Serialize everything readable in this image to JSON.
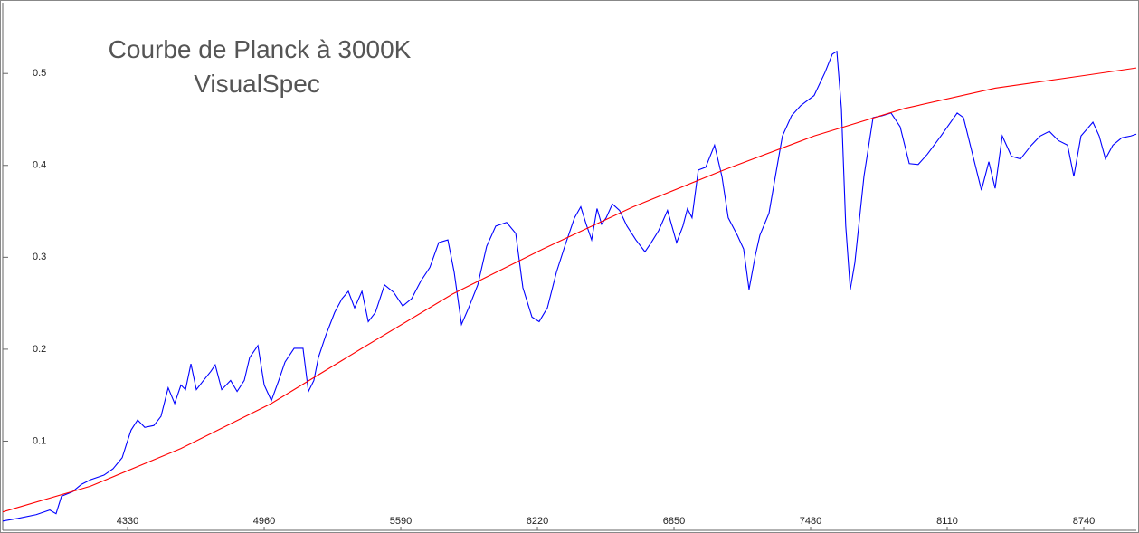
{
  "chart_data": {
    "type": "line",
    "title": "Courbe de Planck à 3000K",
    "subtitle": "VisualSpec",
    "xlim": [
      3754,
      8982
    ],
    "ylim": [
      0.003,
      0.577
    ],
    "xticks": [
      4330,
      4960,
      5590,
      6220,
      6850,
      7480,
      8110,
      8740
    ],
    "yticks": [
      0.1,
      0.2,
      0.3,
      0.4,
      0.5
    ],
    "grid": false,
    "series": [
      {
        "color": "#0000ff",
        "x": [
          3754,
          3825,
          3908,
          3971,
          4000,
          4025,
          4076,
          4117,
          4159,
          4221,
          4263,
          4305,
          4325,
          4346,
          4376,
          4409,
          4451,
          4484,
          4517,
          4547,
          4576,
          4597,
          4622,
          4647,
          4680,
          4714,
          4734,
          4764,
          4805,
          4835,
          4868,
          4893,
          4931,
          4960,
          4993,
          5027,
          5056,
          5098,
          5139,
          5164,
          5189,
          5210,
          5244,
          5285,
          5319,
          5348,
          5377,
          5411,
          5440,
          5473,
          5515,
          5557,
          5599,
          5640,
          5682,
          5724,
          5765,
          5807,
          5836,
          5870,
          5903,
          5945,
          5986,
          6028,
          6078,
          6120,
          6153,
          6195,
          6228,
          6266,
          6308,
          6349,
          6391,
          6420,
          6445,
          6470,
          6495,
          6516,
          6537,
          6566,
          6599,
          6633,
          6674,
          6716,
          6745,
          6779,
          6820,
          6862,
          6891,
          6912,
          6933,
          6962,
          6996,
          7037,
          7071,
          7100,
          7142,
          7171,
          7196,
          7225,
          7246,
          7288,
          7321,
          7350,
          7392,
          7434,
          7496,
          7546,
          7580,
          7601,
          7622,
          7642,
          7663,
          7684,
          7726,
          7768,
          7809,
          7851,
          7893,
          7935,
          7976,
          8018,
          8081,
          8156,
          8185,
          8227,
          8268,
          8302,
          8331,
          8364,
          8406,
          8448,
          8498,
          8539,
          8581,
          8623,
          8665,
          8694,
          8727,
          8782,
          8811,
          8840,
          8874,
          8915,
          8957,
          8982
        ],
        "values": [
          0.013,
          0.016,
          0.02,
          0.025,
          0.021,
          0.04,
          0.045,
          0.053,
          0.058,
          0.063,
          0.07,
          0.082,
          0.097,
          0.112,
          0.123,
          0.115,
          0.117,
          0.127,
          0.158,
          0.141,
          0.161,
          0.156,
          0.184,
          0.156,
          0.166,
          0.176,
          0.183,
          0.156,
          0.166,
          0.154,
          0.166,
          0.191,
          0.204,
          0.161,
          0.144,
          0.166,
          0.186,
          0.201,
          0.201,
          0.154,
          0.166,
          0.191,
          0.215,
          0.24,
          0.255,
          0.263,
          0.245,
          0.263,
          0.23,
          0.24,
          0.27,
          0.262,
          0.247,
          0.255,
          0.274,
          0.289,
          0.316,
          0.319,
          0.284,
          0.227,
          0.245,
          0.27,
          0.312,
          0.334,
          0.338,
          0.326,
          0.267,
          0.235,
          0.23,
          0.245,
          0.284,
          0.314,
          0.343,
          0.355,
          0.336,
          0.319,
          0.353,
          0.336,
          0.343,
          0.358,
          0.351,
          0.334,
          0.319,
          0.306,
          0.316,
          0.329,
          0.351,
          0.316,
          0.334,
          0.353,
          0.343,
          0.395,
          0.398,
          0.422,
          0.388,
          0.343,
          0.324,
          0.309,
          0.265,
          0.302,
          0.324,
          0.348,
          0.393,
          0.432,
          0.454,
          0.465,
          0.476,
          0.501,
          0.521,
          0.524,
          0.462,
          0.334,
          0.265,
          0.294,
          0.388,
          0.452,
          0.454,
          0.457,
          0.442,
          0.402,
          0.401,
          0.412,
          0.432,
          0.457,
          0.452,
          0.412,
          0.373,
          0.404,
          0.375,
          0.432,
          0.41,
          0.407,
          0.422,
          0.432,
          0.437,
          0.427,
          0.422,
          0.388,
          0.432,
          0.447,
          0.432,
          0.407,
          0.422,
          0.43,
          0.432,
          0.434
        ]
      },
      {
        "color": "#ff0000",
        "x": [
          3754,
          4159,
          4576,
          4993,
          5411,
          5828,
          6245,
          6662,
          7079,
          7496,
          7914,
          8331,
          8748,
          8982
        ],
        "values": [
          0.023,
          0.051,
          0.092,
          0.141,
          0.201,
          0.26,
          0.309,
          0.355,
          0.395,
          0.432,
          0.462,
          0.484,
          0.498,
          0.506
        ]
      }
    ]
  }
}
